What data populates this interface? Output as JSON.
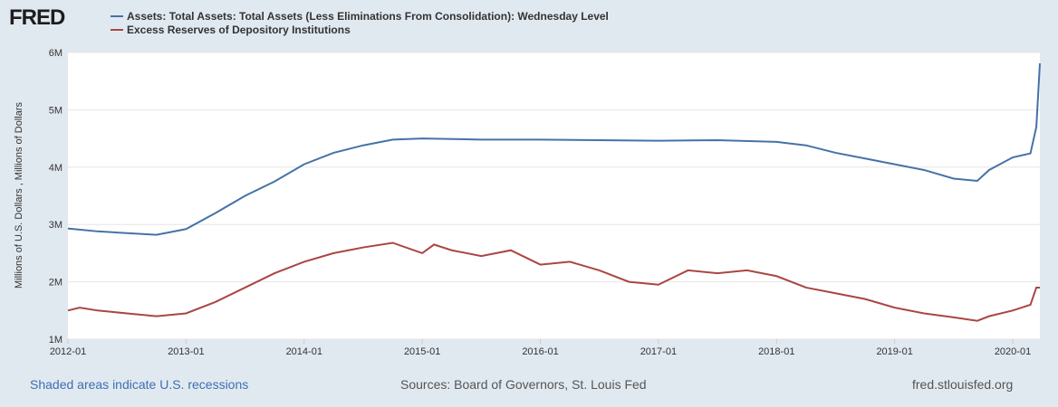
{
  "logo": "FRED",
  "chart_data": {
    "type": "line",
    "title": "",
    "ylabel": "Millions of U.S. Dollars , Millions of Dollars",
    "xlabel": "",
    "ylim": [
      1,
      6
    ],
    "xlim": [
      2012.0,
      2020.23
    ],
    "yticks": [
      {
        "v": 1,
        "label": "1M"
      },
      {
        "v": 2,
        "label": "2M"
      },
      {
        "v": 3,
        "label": "3M"
      },
      {
        "v": 4,
        "label": "4M"
      },
      {
        "v": 5,
        "label": "5M"
      },
      {
        "v": 6,
        "label": "6M"
      }
    ],
    "xticks": [
      {
        "v": 2012,
        "label": "2012-01"
      },
      {
        "v": 2013,
        "label": "2013-01"
      },
      {
        "v": 2014,
        "label": "2014-01"
      },
      {
        "v": 2015,
        "label": "2015-01"
      },
      {
        "v": 2016,
        "label": "2016-01"
      },
      {
        "v": 2017,
        "label": "2017-01"
      },
      {
        "v": 2018,
        "label": "2018-01"
      },
      {
        "v": 2019,
        "label": "2019-01"
      },
      {
        "v": 2020,
        "label": "2020-01"
      }
    ],
    "grid": true,
    "legend_position": "top-left",
    "series": [
      {
        "name": "Assets: Total Assets: Total Assets (Less Eliminations From Consolidation): Wednesday Level",
        "color": "#4572a7",
        "x": [
          2012.0,
          2012.25,
          2012.5,
          2012.75,
          2013.0,
          2013.25,
          2013.5,
          2013.75,
          2014.0,
          2014.25,
          2014.5,
          2014.75,
          2015.0,
          2015.5,
          2016.0,
          2016.5,
          2017.0,
          2017.5,
          2018.0,
          2018.25,
          2018.5,
          2018.75,
          2019.0,
          2019.25,
          2019.5,
          2019.7,
          2019.8,
          2020.0,
          2020.15,
          2020.2,
          2020.23
        ],
        "y": [
          2.93,
          2.88,
          2.85,
          2.82,
          2.92,
          3.2,
          3.5,
          3.75,
          4.05,
          4.25,
          4.38,
          4.48,
          4.5,
          4.48,
          4.48,
          4.47,
          4.46,
          4.47,
          4.44,
          4.38,
          4.25,
          4.15,
          4.05,
          3.95,
          3.8,
          3.76,
          3.95,
          4.17,
          4.24,
          4.7,
          5.81
        ]
      },
      {
        "name": "Excess Reserves of Depository Institutions",
        "color": "#aa4643",
        "x": [
          2012.0,
          2012.1,
          2012.25,
          2012.5,
          2012.75,
          2013.0,
          2013.25,
          2013.5,
          2013.75,
          2014.0,
          2014.25,
          2014.5,
          2014.75,
          2015.0,
          2015.1,
          2015.25,
          2015.5,
          2015.75,
          2016.0,
          2016.25,
          2016.5,
          2016.75,
          2017.0,
          2017.25,
          2017.5,
          2017.75,
          2018.0,
          2018.25,
          2018.5,
          2018.75,
          2019.0,
          2019.25,
          2019.5,
          2019.7,
          2019.8,
          2020.0,
          2020.15,
          2020.2,
          2020.23
        ],
        "y": [
          1.5,
          1.55,
          1.5,
          1.45,
          1.4,
          1.45,
          1.65,
          1.9,
          2.15,
          2.35,
          2.5,
          2.6,
          2.68,
          2.5,
          2.65,
          2.55,
          2.45,
          2.55,
          2.3,
          2.35,
          2.2,
          2.0,
          1.95,
          2.2,
          2.15,
          2.2,
          2.1,
          1.9,
          1.8,
          1.7,
          1.55,
          1.45,
          1.38,
          1.32,
          1.4,
          1.5,
          1.6,
          1.9,
          1.9
        ]
      }
    ]
  },
  "footer": {
    "recessions": "Shaded areas indicate U.S. recessions",
    "sources": "Sources: Board of Governors, St. Louis Fed",
    "site": "fred.stlouisfed.org"
  }
}
